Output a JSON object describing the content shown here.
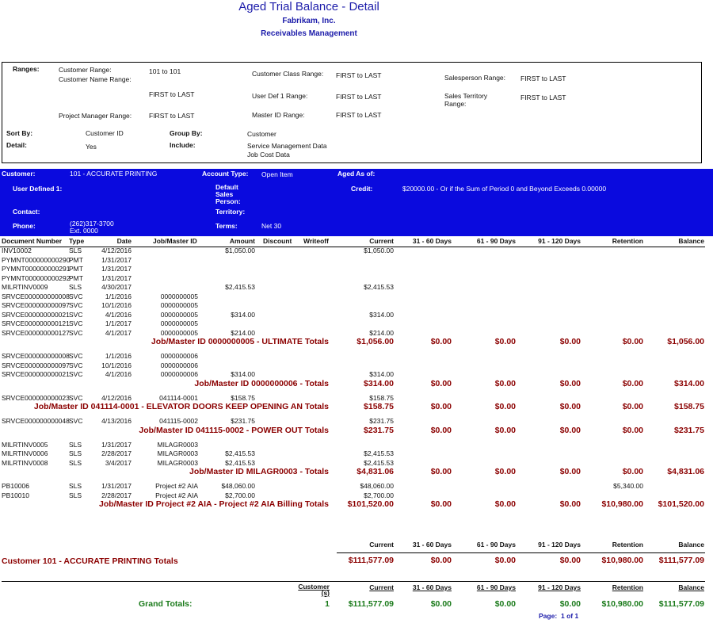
{
  "header": {
    "title": "Aged Trial Balance - Detail",
    "company": "Fabrikam, Inc.",
    "module": "Receivables Management"
  },
  "ranges": {
    "heading": "Ranges:",
    "customer_range": {
      "label": "Customer Range:",
      "value": "101 to 101"
    },
    "customer_name_range": {
      "label": "Customer Name Range:",
      "value": "FIRST to LAST"
    },
    "project_manager_range": {
      "label": "Project Manager Range:",
      "value": "FIRST to LAST"
    },
    "customer_class_range": {
      "label": "Customer Class Range:",
      "value": "FIRST to LAST"
    },
    "user_def_1_range": {
      "label": "User Def 1 Range:",
      "value": "FIRST to LAST"
    },
    "master_id_range": {
      "label": "Master ID Range:",
      "value": "FIRST to LAST"
    },
    "salesperson_range": {
      "label": "Salesperson Range:",
      "value": "FIRST to LAST"
    },
    "sales_territory_range": {
      "label": "Sales Territory Range:",
      "value": "FIRST to LAST"
    }
  },
  "options": {
    "sort_by": {
      "label": "Sort By:",
      "value": "Customer ID"
    },
    "group_by": {
      "label": "Group By:",
      "value": "Customer"
    },
    "detail": {
      "label": "Detail:",
      "value": "Yes"
    },
    "include": {
      "label": "Include:",
      "values": [
        "Service Management Data",
        "Job Cost Data"
      ]
    }
  },
  "customer": {
    "customer": {
      "label": "Customer:",
      "value": "101 - ACCURATE PRINTING"
    },
    "account_type": {
      "label": "Account Type:",
      "value": "Open Item"
    },
    "aged_as_of": {
      "label": "Aged As of:"
    },
    "user_defined_1": {
      "label": "User Defined 1:"
    },
    "salesperson": {
      "label": "Default Sales Person:"
    },
    "credit": {
      "label": "Credit:",
      "value": "$20000.00 - Or if the Sum of Period 0 and Beyond Exceeds 0.00000"
    },
    "contact": {
      "label": "Contact:"
    },
    "territory": {
      "label": "Territory:"
    },
    "phone": {
      "label": "Phone:",
      "value": "(262)317-3700 Ext. 0000"
    },
    "terms": {
      "label": "Terms:",
      "value": "Net 30"
    }
  },
  "columns": {
    "doc": "Document Number",
    "type": "Type",
    "date": "Date",
    "job": "Job/Master ID",
    "amount": "Amount",
    "discount": "Discount",
    "writeoff": "Writeoff",
    "current": "Current",
    "d31_60": "31 - 60 Days",
    "d61_90": "61 - 90 Days",
    "d91_120": "91 - 120 Days",
    "retention": "Retention",
    "balance": "Balance"
  },
  "groups": [
    {
      "rows": [
        {
          "doc": "INV10002",
          "type": "SLS",
          "date": "4/12/2016",
          "amount": "$1,050.00",
          "current": "$1,050.00"
        },
        {
          "doc": "PYMNT000000000290",
          "type": "PMT",
          "date": "1/31/2017"
        },
        {
          "doc": "PYMNT000000000291",
          "type": "PMT",
          "date": "1/31/2017"
        },
        {
          "doc": "PYMNT000000000292",
          "type": "PMT",
          "date": "1/31/2017"
        },
        {
          "doc": "MILRTINV0009",
          "type": "SLS",
          "date": "4/30/2017",
          "amount": "$2,415.53",
          "current": "$2,415.53"
        },
        {
          "doc": "SRVCE000000000008",
          "type": "SVC",
          "date": "1/1/2016",
          "job": "0000000005"
        },
        {
          "doc": "SRVCE000000000097",
          "type": "SVC",
          "date": "10/1/2016",
          "job": "0000000005"
        },
        {
          "doc": "SRVCE000000000021",
          "type": "SVC",
          "date": "4/1/2016",
          "job": "0000000005",
          "amount": "$314.00",
          "current": "$314.00"
        },
        {
          "doc": "SRVCE000000000121",
          "type": "SVC",
          "date": "1/1/2017",
          "job": "0000000005"
        },
        {
          "doc": "SRVCE000000000127",
          "type": "SVC",
          "date": "4/1/2017",
          "job": "0000000005",
          "amount": "$214.00",
          "current": "$214.00"
        }
      ],
      "total": {
        "label": "Job/Master ID 0000000005 - ULTIMATE Totals",
        "current": "$1,056.00",
        "d31_60": "$0.00",
        "d61_90": "$0.00",
        "d91_120": "$0.00",
        "retention": "$0.00",
        "balance": "$1,056.00"
      }
    },
    {
      "rows": [
        {
          "doc": "SRVCE000000000008",
          "type": "SVC",
          "date": "1/1/2016",
          "job": "0000000006"
        },
        {
          "doc": "SRVCE000000000097",
          "type": "SVC",
          "date": "10/1/2016",
          "job": "0000000006"
        },
        {
          "doc": "SRVCE000000000021",
          "type": "SVC",
          "date": "4/1/2016",
          "job": "0000000006",
          "amount": "$314.00",
          "current": "$314.00"
        }
      ],
      "total": {
        "label": "Job/Master ID 0000000006 - Totals",
        "current": "$314.00",
        "d31_60": "$0.00",
        "d61_90": "$0.00",
        "d91_120": "$0.00",
        "retention": "$0.00",
        "balance": "$314.00"
      }
    },
    {
      "rows": [
        {
          "doc": "SRVCE000000000023",
          "type": "SVC",
          "date": "4/12/2016",
          "job": "041114-0001",
          "amount": "$158.75",
          "current": "$158.75"
        }
      ],
      "total": {
        "label": "Job/Master ID 041114-0001 - ELEVATOR DOORS KEEP OPENING AN Totals",
        "current": "$158.75",
        "d31_60": "$0.00",
        "d61_90": "$0.00",
        "d91_120": "$0.00",
        "retention": "$0.00",
        "balance": "$158.75"
      }
    },
    {
      "rows": [
        {
          "doc": "SRVCE000000000048",
          "type": "SVC",
          "date": "4/13/2016",
          "job": "041115-0002",
          "amount": "$231.75",
          "current": "$231.75"
        }
      ],
      "total": {
        "label": "Job/Master ID 041115-0002 - POWER OUT Totals",
        "current": "$231.75",
        "d31_60": "$0.00",
        "d61_90": "$0.00",
        "d91_120": "$0.00",
        "retention": "$0.00",
        "balance": "$231.75"
      }
    },
    {
      "rows": [
        {
          "doc": "MILRTINV0005",
          "type": "SLS",
          "date": "1/31/2017",
          "job": "MILAGR0003"
        },
        {
          "doc": "MILRTINV0006",
          "type": "SLS",
          "date": "2/28/2017",
          "job": "MILAGR0003",
          "amount": "$2,415.53",
          "current": "$2,415.53"
        },
        {
          "doc": "MILRTINV0008",
          "type": "SLS",
          "date": "3/4/2017",
          "job": "MILAGR0003",
          "amount": "$2,415.53",
          "current": "$2,415.53"
        }
      ],
      "total": {
        "label": "Job/Master ID MILAGR0003 - Totals",
        "current": "$4,831.06",
        "d31_60": "$0.00",
        "d61_90": "$0.00",
        "d91_120": "$0.00",
        "retention": "$0.00",
        "balance": "$4,831.06"
      }
    },
    {
      "rows": [
        {
          "doc": "PB10006",
          "type": "SLS",
          "date": "1/31/2017",
          "job": "Project #2 AIA",
          "amount": "$48,060.00",
          "current": "$48,060.00",
          "retention": "$5,340.00"
        },
        {
          "doc": "PB10010",
          "type": "SLS",
          "date": "2/28/2017",
          "job": "Project #2 AIA",
          "amount": "$2,700.00",
          "current": "$2,700.00"
        }
      ],
      "total": {
        "label": "Job/Master ID Project #2 AIA - Project #2 AIA Billing Totals",
        "current": "$101,520.00",
        "d31_60": "$0.00",
        "d61_90": "$0.00",
        "d91_120": "$0.00",
        "retention": "$10,980.00",
        "balance": "$101,520.00"
      }
    }
  ],
  "customer_totals": {
    "headers": {
      "current": "Current",
      "d31_60": "31 - 60 Days",
      "d61_90": "61 - 90 Days",
      "d91_120": "91 - 120 Days",
      "retention": "Retention",
      "balance": "Balance"
    },
    "label": "Customer 101 - ACCURATE PRINTING Totals",
    "values": {
      "current": "$111,577.09",
      "d31_60": "$0.00",
      "d61_90": "$0.00",
      "d91_120": "$0.00",
      "retention": "$10,980.00",
      "balance": "$111,577.09"
    }
  },
  "grand_totals": {
    "headers": {
      "customers": "Customer (s)",
      "current": "Current",
      "d31_60": "31 - 60 Days",
      "d61_90": "61 - 90 Days",
      "d91_120": "91 - 120 Days",
      "retention": "Retention",
      "balance": "Balance"
    },
    "label": "Grand Totals:",
    "values": {
      "customers": 1,
      "current": "$111,577.09",
      "d31_60": "$0.00",
      "d61_90": "$0.00",
      "d91_120": "$0.00",
      "retention": "$10,980.00",
      "balance": "$111,577.09"
    }
  },
  "page": {
    "label": "Page:",
    "value": "1 of 1"
  }
}
